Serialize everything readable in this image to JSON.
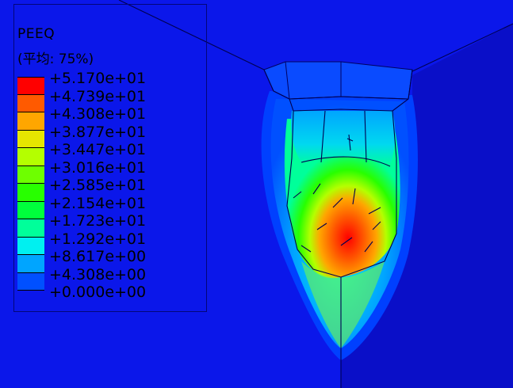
{
  "legend": {
    "title": "PEEQ",
    "subtitle": "(平均: 75%)",
    "levels": [
      {
        "label": "+5.170e+01",
        "color": "#ff0000"
      },
      {
        "label": "+4.739e+01",
        "color": "#ff5a00"
      },
      {
        "label": "+4.308e+01",
        "color": "#ffa600"
      },
      {
        "label": "+3.877e+01",
        "color": "#e6e600"
      },
      {
        "label": "+3.447e+01",
        "color": "#b4ff00"
      },
      {
        "label": "+3.016e+01",
        "color": "#6eff00"
      },
      {
        "label": "+2.585e+01",
        "color": "#28ff00"
      },
      {
        "label": "+2.154e+01",
        "color": "#00ff3c"
      },
      {
        "label": "+1.723e+01",
        "color": "#00ff9a"
      },
      {
        "label": "+1.292e+01",
        "color": "#00f0f0"
      },
      {
        "label": "+8.617e+00",
        "color": "#00a5ff"
      },
      {
        "label": "+4.308e+00",
        "color": "#0050ff"
      },
      {
        "label": "+0.000e+00",
        "color": "#0010ff"
      }
    ]
  }
}
